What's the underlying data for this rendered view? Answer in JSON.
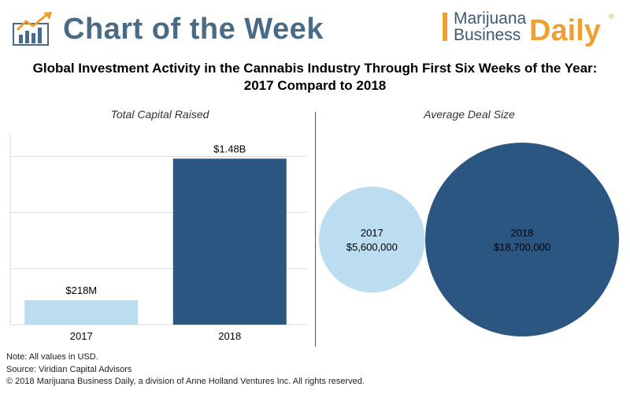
{
  "header": {
    "title": "Chart of the Week",
    "brand": {
      "line1": "Marijuana",
      "line2": "Business",
      "line3": "Daily",
      "reg": "®"
    }
  },
  "main_title": {
    "line1": "Global Investment Activity in the Cannabis Industry Through First Six Weeks of the Year:",
    "line2": "2017 Compard to 2018"
  },
  "colors": {
    "header_blue": "#4a6b86",
    "brand_orange": "#f0a030",
    "light_blue": "#bcdcf0",
    "dark_blue": "#2c5682"
  },
  "chart_data": [
    {
      "type": "bar",
      "title": "Total Capital Raised",
      "categories": [
        "2017",
        "2018"
      ],
      "values": [
        218000000,
        1480000000
      ],
      "data_labels": [
        "$218M",
        "$1.48B"
      ],
      "colors": [
        "#bcdcf0",
        "#2c5682"
      ],
      "ylim": [
        0,
        1700000000
      ],
      "gridlines": [
        0,
        500000000,
        1000000000,
        1500000000
      ],
      "xlabel": "",
      "ylabel": ""
    },
    {
      "type": "bubble",
      "title": "Average Deal Size",
      "categories": [
        "2017",
        "2018"
      ],
      "values": [
        5600000,
        18700000
      ],
      "data_labels": [
        "$5,600,000",
        "$18,700,000"
      ],
      "colors": [
        "#bcdcf0",
        "#2c5682"
      ]
    }
  ],
  "notes": {
    "note": "Note: All values in USD.",
    "source": "Source: Viridian Capital Advisors",
    "copyright": "© 2018 Marijuana Business Daily, a division of Anne Holland Ventures Inc. All rights reserved."
  }
}
